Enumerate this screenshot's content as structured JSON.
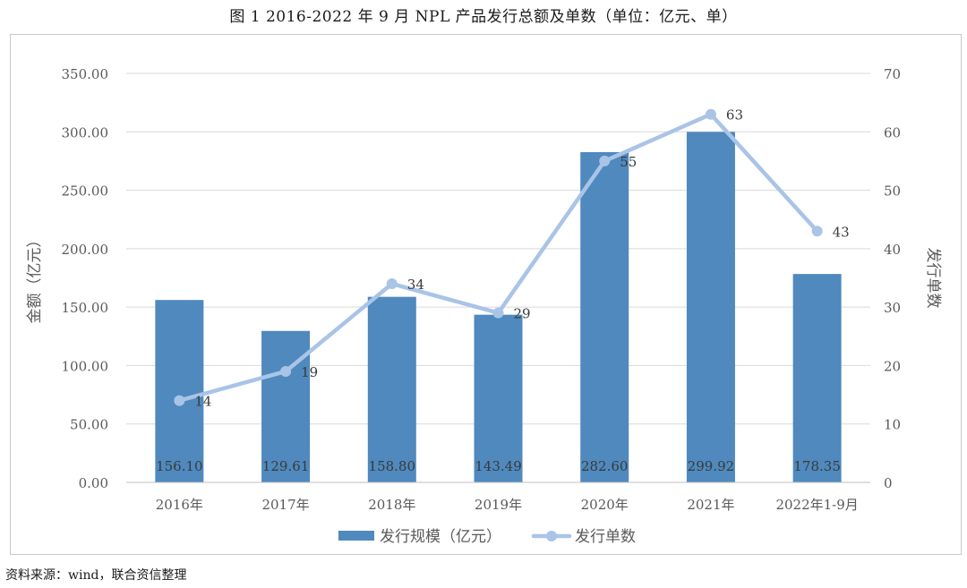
{
  "figure": {
    "title": "图 1   2016-2022 年 9 月 NPL 产品发行总额及单数（单位：亿元、单）",
    "source": "资料来源：wind，联合资信整理"
  },
  "chart_data": {
    "type": "bar",
    "categories": [
      "2016年",
      "2017年",
      "2018年",
      "2019年",
      "2020年",
      "2021年",
      "2022年1-9月"
    ],
    "series": [
      {
        "name": "发行规模（亿元）",
        "type": "bar",
        "axis": "left",
        "color": "#4f89be",
        "values": [
          156.1,
          129.61,
          158.8,
          143.49,
          282.6,
          299.92,
          178.35
        ],
        "labels": [
          "156.10",
          "129.61",
          "158.80",
          "143.49",
          "282.60",
          "299.92",
          "178.35"
        ]
      },
      {
        "name": "发行单数",
        "type": "line",
        "axis": "right",
        "color": "#a9c4e6",
        "values": [
          14,
          19,
          34,
          29,
          55,
          63,
          43
        ],
        "labels": [
          "14",
          "19",
          "34",
          "29",
          "55",
          "63",
          "43"
        ]
      }
    ],
    "y_left": {
      "label": "金额（亿元）",
      "min": 0,
      "max": 350,
      "ticks": [
        0,
        50,
        100,
        150,
        200,
        250,
        300,
        350
      ],
      "tick_labels": [
        "0.00",
        "50.00",
        "100.00",
        "150.00",
        "200.00",
        "250.00",
        "300.00",
        "350.00"
      ]
    },
    "y_right": {
      "label": "发行单数",
      "min": 0,
      "max": 70,
      "ticks": [
        0,
        10,
        20,
        30,
        40,
        50,
        60,
        70
      ],
      "tick_labels": [
        "0",
        "10",
        "20",
        "30",
        "40",
        "50",
        "60",
        "70"
      ]
    },
    "grid": true,
    "legend_position": "bottom"
  }
}
